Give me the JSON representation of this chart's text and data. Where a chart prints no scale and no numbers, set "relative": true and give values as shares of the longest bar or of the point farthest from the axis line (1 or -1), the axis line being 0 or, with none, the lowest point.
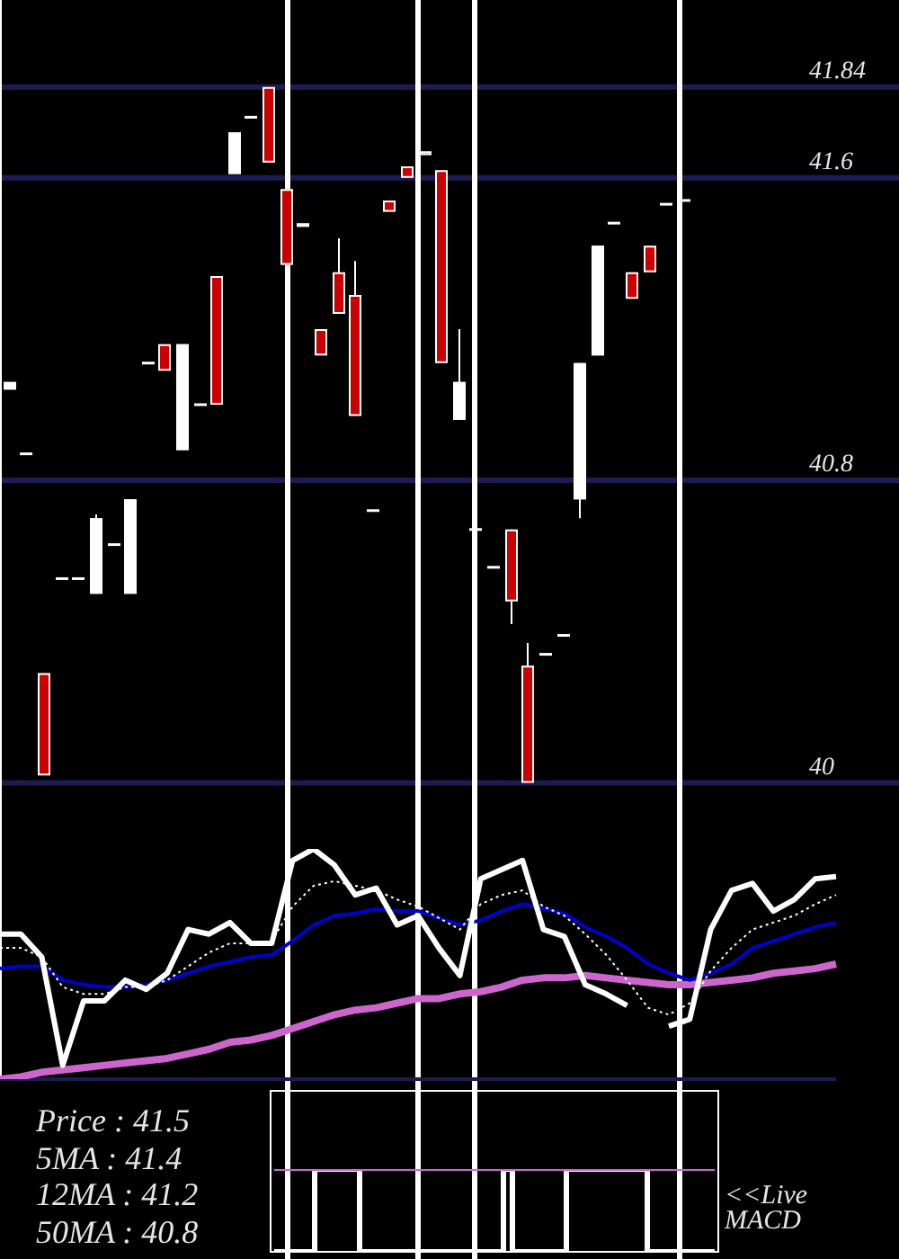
{
  "chart_data": [
    {
      "type": "candlestick",
      "categories": [
        null,
        null,
        null,
        null,
        null,
        null,
        null,
        null,
        null,
        null,
        null,
        null,
        null,
        null,
        null,
        null,
        null,
        null,
        null,
        null,
        null,
        null,
        null,
        null,
        null,
        null,
        null,
        null,
        null,
        null,
        null,
        null,
        null,
        null,
        null,
        null,
        null,
        null,
        null,
        null,
        null,
        null,
        null,
        null,
        null,
        null,
        null,
        null,
        null,
        null,
        null,
        null
      ],
      "ohlc": [
        [
          41.04,
          41.06,
          41.04,
          41.06
        ],
        [
          40.87,
          40.87,
          40.87,
          40.87
        ],
        [
          40.29,
          40.29,
          40.02,
          40.02
        ],
        [
          40.54,
          40.54,
          40.54,
          40.54
        ],
        [
          40.54,
          40.54,
          40.54,
          40.54
        ],
        [
          40.5,
          40.71,
          40.5,
          40.7
        ],
        [
          40.63,
          40.63,
          40.63,
          40.63
        ],
        [
          40.5,
          40.75,
          40.5,
          40.75
        ],
        [
          41.11,
          41.11,
          41.11,
          41.11
        ],
        [
          41.16,
          41.16,
          41.09,
          41.09
        ],
        [
          40.88,
          41.16,
          40.88,
          41.16
        ],
        [
          41.0,
          41.0,
          41.0,
          41.0
        ],
        [
          41.34,
          41.34,
          41.0,
          41.0
        ],
        [
          41.61,
          41.72,
          41.61,
          41.72
        ],
        [
          41.76,
          41.76,
          41.76,
          41.76
        ],
        [
          41.84,
          41.84,
          41.64,
          41.64
        ],
        [
          41.57,
          41.57,
          41.37,
          41.37
        ],
        [
          41.48,
          41.48,
          41.47,
          41.47
        ],
        [
          41.2,
          41.2,
          41.13,
          41.13
        ],
        [
          41.35,
          41.44,
          41.24,
          41.24
        ],
        [
          41.29,
          41.38,
          40.97,
          40.97
        ],
        [
          40.72,
          40.72,
          40.72,
          40.72
        ],
        [
          41.54,
          41.54,
          41.51,
          41.51
        ],
        [
          41.63,
          41.63,
          41.6,
          41.6
        ],
        [
          41.67,
          41.67,
          41.66,
          41.66
        ],
        [
          41.62,
          41.62,
          41.11,
          41.11
        ],
        [
          40.96,
          41.2,
          40.96,
          41.06
        ],
        [
          40.67,
          40.67,
          40.67,
          40.67
        ],
        [
          40.57,
          40.57,
          40.57,
          40.57
        ],
        [
          40.67,
          40.67,
          40.42,
          40.48
        ],
        [
          40.31,
          40.37,
          40.0,
          40.0
        ],
        [
          40.34,
          40.34,
          40.34,
          40.34
        ],
        [
          40.39,
          40.39,
          40.39,
          40.39
        ],
        [
          40.75,
          41.11,
          40.7,
          41.11
        ],
        [
          41.13,
          41.42,
          41.13,
          41.42
        ],
        [
          41.48,
          41.48,
          41.48,
          41.48
        ],
        [
          41.35,
          41.35,
          41.28,
          41.28
        ],
        [
          41.42,
          41.42,
          41.35,
          41.35
        ],
        [
          41.53,
          41.53,
          41.53,
          41.53
        ],
        [
          41.54,
          41.54,
          41.54,
          41.54
        ],
        null,
        null,
        null,
        null,
        null,
        null,
        null,
        null,
        null,
        null,
        null,
        null
      ],
      "colors": [
        "#ffffff",
        "#ffffff",
        "#cc0000",
        "#ffffff",
        "#ffffff",
        "#ffffff",
        "#ffffff",
        "#ffffff",
        "#ffffff",
        "#cc0000",
        "#ffffff",
        "#ffffff",
        "#cc0000",
        "#ffffff",
        "#ffffff",
        "#cc0000",
        "#cc0000",
        "#cc0000",
        "#cc0000",
        "#cc0000",
        "#cc0000",
        "#ffffff",
        "#cc0000",
        "#cc0000",
        "#cc0000",
        "#cc0000",
        "#ffffff",
        "#ffffff",
        "#ffffff",
        "#cc0000",
        "#cc0000",
        "#ffffff",
        "#ffffff",
        "#ffffff",
        "#ffffff",
        "#ffffff",
        "#cc0000",
        "#cc0000",
        "#ffffff",
        "#ffffff",
        null,
        null,
        null,
        null,
        null,
        null,
        null,
        null,
        null,
        null,
        null,
        null
      ],
      "ylim": [
        39.93,
        42.07
      ],
      "yticks": [
        40,
        40.8,
        41.6,
        41.84
      ],
      "grid": true,
      "tick_labels": "y"
    },
    {
      "type": "line",
      "relative": true,
      "categories": [
        null,
        null,
        null,
        null,
        null,
        null,
        null,
        null,
        null,
        null,
        null,
        null,
        null,
        null,
        null,
        null,
        null,
        null,
        null,
        null,
        null,
        null,
        null,
        null,
        null,
        null,
        null,
        null,
        null,
        null,
        null,
        null,
        null,
        null,
        null,
        null,
        null,
        null,
        null,
        null,
        null
      ],
      "series": [
        {
          "color": "#ffffff",
          "values": [
            0.63,
            0.63,
            0.53,
            0.06,
            0.34,
            0.34,
            0.43,
            0.39,
            0.46,
            0.65,
            0.63,
            0.68,
            0.59,
            0.59,
            0.95,
            1,
            0.93,
            0.8,
            0.83,
            0.67,
            0.71,
            0.57,
            0.45,
            0.87,
            0.91,
            0.95,
            0.65,
            0.62,
            0.41,
            0.37,
            0.32,
            null,
            0.23,
            0.26,
            0.65,
            0.82,
            0.85,
            0.73,
            0.78,
            0.87,
            0.88
          ]
        },
        {
          "color": "#ffffff",
          "line_style": "dotted",
          "values": [
            0.57,
            0.57,
            0.53,
            0.4,
            0.37,
            0.37,
            0.4,
            0.4,
            0.43,
            0.49,
            0.55,
            0.59,
            0.59,
            0.6,
            0.75,
            0.84,
            0.86,
            0.84,
            0.82,
            0.78,
            0.75,
            0.7,
            0.65,
            0.76,
            0.8,
            0.82,
            0.75,
            0.71,
            0.63,
            0.54,
            0.43,
            0.31,
            0.28,
            0.33,
            0.47,
            0.57,
            0.65,
            0.68,
            0.71,
            0.76,
            0.8
          ]
        },
        {
          "color": "#0000cc",
          "values": [
            0.48,
            0.49,
            0.49,
            0.43,
            0.41,
            0.4,
            0.4,
            0.41,
            0.43,
            0.46,
            0.49,
            0.51,
            0.53,
            0.54,
            0.6,
            0.67,
            0.71,
            0.72,
            0.74,
            0.73,
            0.73,
            0.7,
            0.67,
            0.69,
            0.73,
            0.76,
            0.74,
            0.72,
            0.66,
            0.62,
            0.57,
            0.5,
            0.46,
            0.43,
            0.46,
            0.5,
            0.57,
            0.6,
            0.63,
            0.66,
            0.68
          ]
        },
        {
          "color": "#cc66cc",
          "values": [
            0,
            0.01,
            0.03,
            0.04,
            0.05,
            0.06,
            0.07,
            0.08,
            0.09,
            0.11,
            0.13,
            0.16,
            0.17,
            0.19,
            0.22,
            0.25,
            0.28,
            0.3,
            0.31,
            0.33,
            0.35,
            0.35,
            0.37,
            0.38,
            0.4,
            0.43,
            0.44,
            0.44,
            0.45,
            0.44,
            0.43,
            0.42,
            0.41,
            0.41,
            0.42,
            0.43,
            0.44,
            0.46,
            0.47,
            0.48,
            0.5
          ]
        }
      ],
      "line_style": "solid",
      "marker": "none",
      "annotations": [
        "Price : 41.5",
        "5MA : 41.4",
        "12MA : 41.2",
        "50MA : 40.8"
      ]
    },
    {
      "type": "line",
      "relative": true,
      "categories": [
        null,
        null,
        null,
        null,
        null,
        null,
        null,
        null,
        null,
        null,
        null,
        null,
        null,
        null,
        null,
        null,
        null,
        null,
        null,
        null,
        null,
        null,
        null,
        null,
        null,
        null,
        null,
        null,
        null,
        null,
        null,
        null,
        null,
        null,
        null,
        null,
        null,
        null,
        null,
        null,
        null,
        null,
        null,
        null,
        null,
        null,
        null,
        null,
        null,
        null
      ],
      "series": [
        {
          "color": "#cc66cc",
          "values": [
            1,
            1,
            1,
            1,
            1,
            1,
            1,
            1,
            1,
            1,
            1,
            1,
            1,
            1,
            1,
            1,
            1,
            1,
            1,
            1,
            1,
            1,
            1,
            1,
            1,
            1,
            1,
            1,
            1,
            1,
            1,
            1,
            1,
            1,
            1,
            1,
            1,
            1,
            1,
            1,
            1,
            1,
            1,
            1,
            1,
            1,
            1,
            1,
            1,
            1
          ]
        },
        {
          "type": "step",
          "color": "#ffffff",
          "values": [
            0,
            0,
            0,
            0,
            0,
            1,
            1,
            1,
            1,
            1,
            0,
            0,
            0,
            0,
            0,
            0,
            0,
            0,
            0,
            0,
            0,
            0,
            0,
            0,
            0,
            0,
            1,
            0,
            0,
            0,
            0,
            0,
            0,
            1,
            1,
            1,
            1,
            1,
            1,
            1,
            1,
            1,
            0,
            0,
            0,
            0,
            0,
            0,
            0,
            0
          ]
        }
      ],
      "line_style": "solid",
      "marker": "none",
      "annotations": [
        "<<Live MACD"
      ]
    }
  ]
}
